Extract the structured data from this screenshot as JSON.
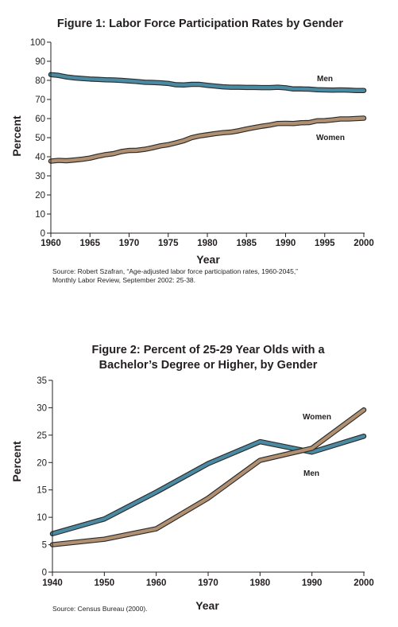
{
  "chart_data": [
    {
      "type": "line",
      "title": "Figure 1: Labor Force Participation Rates by Gender",
      "xlabel": "Year",
      "ylabel": "Percent",
      "xlim": [
        1960,
        2000
      ],
      "ylim": [
        0,
        100
      ],
      "x_ticks": [
        1960,
        1965,
        1970,
        1975,
        1980,
        1985,
        1990,
        1995,
        2000
      ],
      "y_ticks": [
        0,
        10,
        20,
        30,
        40,
        50,
        60,
        70,
        80,
        90,
        100
      ],
      "grid": false,
      "x": [
        1960,
        1961,
        1962,
        1963,
        1964,
        1965,
        1966,
        1967,
        1968,
        1969,
        1970,
        1971,
        1972,
        1973,
        1974,
        1975,
        1976,
        1977,
        1978,
        1979,
        1980,
        1981,
        1982,
        1983,
        1984,
        1985,
        1986,
        1987,
        1988,
        1989,
        1990,
        1991,
        1992,
        1993,
        1994,
        1995,
        1996,
        1997,
        1998,
        1999,
        2000
      ],
      "series": [
        {
          "name": "Men",
          "color": "#4a8aa3",
          "values": [
            83.0,
            82.6,
            81.8,
            81.3,
            81.0,
            80.7,
            80.5,
            80.3,
            80.2,
            80.0,
            79.7,
            79.4,
            79.0,
            78.9,
            78.7,
            78.4,
            77.7,
            77.6,
            77.9,
            77.9,
            77.4,
            77.0,
            76.6,
            76.4,
            76.4,
            76.3,
            76.3,
            76.2,
            76.2,
            76.4,
            76.1,
            75.5,
            75.5,
            75.4,
            75.1,
            75.0,
            74.9,
            75.0,
            74.9,
            74.7,
            74.7
          ]
        },
        {
          "name": "Women",
          "color": "#b09070",
          "values": [
            37.7,
            38.1,
            37.9,
            38.3,
            38.7,
            39.3,
            40.3,
            41.1,
            41.6,
            42.7,
            43.3,
            43.4,
            43.9,
            44.7,
            45.7,
            46.3,
            47.3,
            48.4,
            50.0,
            50.9,
            51.5,
            52.1,
            52.6,
            52.9,
            53.6,
            54.5,
            55.3,
            56.0,
            56.6,
            57.4,
            57.5,
            57.4,
            57.8,
            57.9,
            58.8,
            58.9,
            59.3,
            59.8,
            59.8,
            60.0,
            60.2
          ]
        }
      ],
      "source_lines": [
        "Source: Robert Szafran, “Age-adjusted labor force participation rates, 1960-2045,”",
        "Monthly Labor Review, September 2002: 25-38."
      ]
    },
    {
      "type": "line",
      "title_lines": [
        "Figure 2: Percent of 25-29 Year Olds with a",
        "Bachelor’s Degree or Higher, by Gender"
      ],
      "xlabel": "Year",
      "ylabel": "Percent",
      "xlim": [
        1940,
        2000
      ],
      "ylim": [
        0,
        35
      ],
      "x_ticks": [
        1940,
        1950,
        1960,
        1970,
        1980,
        1990,
        2000
      ],
      "y_ticks": [
        0,
        5,
        10,
        15,
        20,
        25,
        30,
        35
      ],
      "grid": false,
      "x": [
        1940,
        1950,
        1960,
        1970,
        1980,
        1990,
        2000
      ],
      "series": [
        {
          "name": "Men",
          "color": "#4a8aa3",
          "values": [
            7.0,
            9.7,
            14.6,
            19.8,
            23.8,
            21.9,
            24.8
          ]
        },
        {
          "name": "Women",
          "color": "#b09070",
          "values": [
            5.0,
            6.0,
            7.9,
            13.5,
            20.4,
            22.6,
            29.6
          ]
        }
      ],
      "source_lines": [
        "Source: Census Bureau (2000)."
      ]
    }
  ]
}
